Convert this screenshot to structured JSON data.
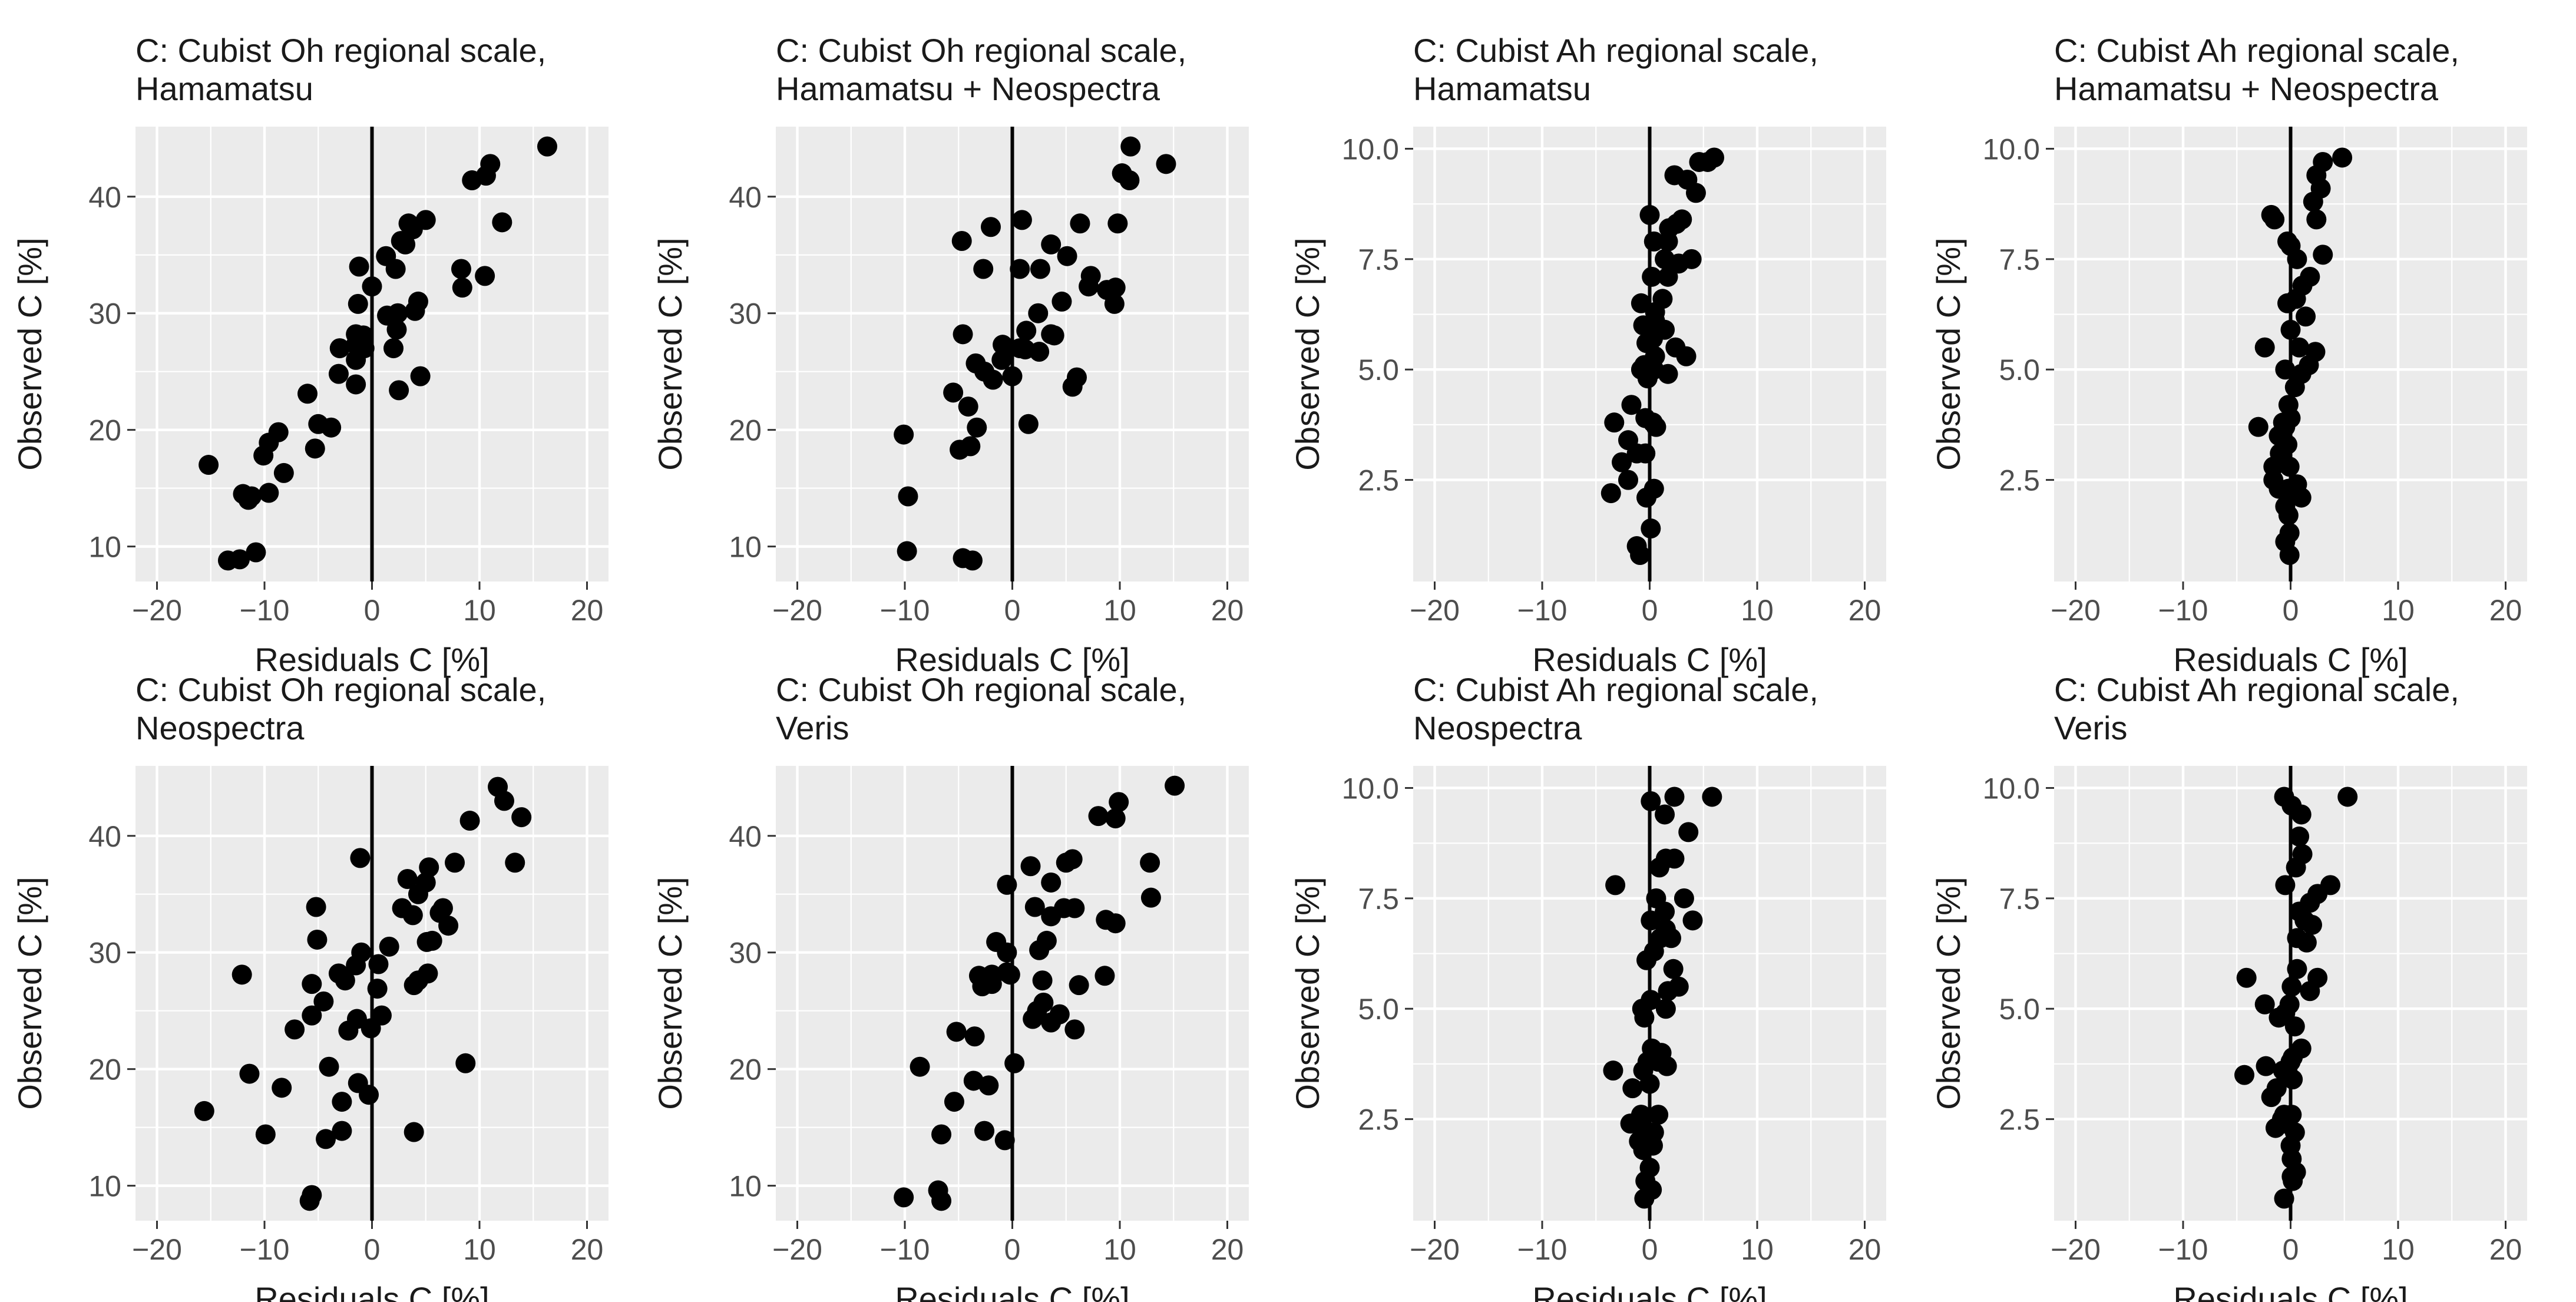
{
  "colors": {
    "panel_bg": "#ebebeb",
    "grid": "#ffffff",
    "point": "#000000",
    "zero_line": "#000000",
    "text": "#1a1a1a",
    "tick_text": "#4d4d4d"
  },
  "chart_data": [
    {
      "type": "scatter",
      "title_lines": [
        "C: Cubist Oh regional scale,",
        "Hamamatsu"
      ],
      "xlabel": "Residuals C [%]",
      "ylabel": "Observed C [%]",
      "xlim": [
        -22,
        22
      ],
      "ylim": [
        7,
        46
      ],
      "xticks": [
        -20,
        -10,
        0,
        10,
        20
      ],
      "xtick_labels": [
        "−20",
        "−10",
        "0",
        "10",
        "20"
      ],
      "yticks": [
        10,
        20,
        30,
        40
      ],
      "ytick_labels": [
        "10",
        "20",
        "30",
        "40"
      ],
      "x": [
        16.3,
        11.0,
        10.6,
        9.3,
        12.1,
        5.0,
        3.8,
        3.4,
        2.7,
        3.1,
        2.2,
        1.3,
        -1.2,
        0.0,
        -1.3,
        8.3,
        8.4,
        4.3,
        4.0,
        2.4,
        1.4,
        -1.5,
        -0.8,
        -1.5,
        -3.0,
        -0.7,
        -1.5,
        2.3,
        2.0,
        10.5,
        4.5,
        2.5,
        -1.5,
        -3.1,
        -5.0,
        -3.8,
        -6.0,
        -5.3,
        -9.6,
        -8.7,
        -10.1,
        -11.2,
        -8.2,
        -9.6,
        -15.2,
        -11.5,
        -12.0,
        -10.8,
        -13.4,
        -12.3
      ],
      "y": [
        44.3,
        42.8,
        41.8,
        41.4,
        37.8,
        38.0,
        37.2,
        37.7,
        36.2,
        35.9,
        33.8,
        34.9,
        34.0,
        32.3,
        30.8,
        33.8,
        32.2,
        31.0,
        30.2,
        30.0,
        29.8,
        28.2,
        28.1,
        27.3,
        27.0,
        27.0,
        26.0,
        28.6,
        27.0,
        33.2,
        24.6,
        23.4,
        23.9,
        24.8,
        20.5,
        20.2,
        23.1,
        18.4,
        18.9,
        19.8,
        17.8,
        14.3,
        16.3,
        14.6,
        17.0,
        14.0,
        14.5,
        9.5,
        8.8,
        8.9
      ]
    },
    {
      "type": "scatter",
      "title_lines": [
        "C: Cubist Oh regional scale,",
        "Hamamatsu + Neospectra"
      ],
      "xlabel": "Residuals C [%]",
      "ylabel": "Observed C [%]",
      "xlim": [
        -22,
        22
      ],
      "ylim": [
        7,
        46
      ],
      "xticks": [
        -20,
        -10,
        0,
        10,
        20
      ],
      "xtick_labels": [
        "−20",
        "−10",
        "0",
        "10",
        "20"
      ],
      "yticks": [
        10,
        20,
        30,
        40
      ],
      "ytick_labels": [
        "10",
        "20",
        "30",
        "40"
      ],
      "x": [
        11.0,
        10.2,
        14.3,
        10.9,
        9.8,
        6.3,
        9.6,
        0.9,
        -2.0,
        -4.7,
        -2.7,
        0.7,
        2.6,
        3.6,
        5.1,
        7.3,
        7.1,
        8.8,
        9.5,
        4.6,
        2.4,
        1.3,
        -0.9,
        -0.5,
        -1.0,
        3.9,
        3.6,
        0.7,
        1.2,
        2.5,
        -4.6,
        -2.6,
        -1.8,
        -3.4,
        -5.5,
        -4.1,
        -3.3,
        -3.9,
        -4.9,
        0.0,
        6.0,
        5.6,
        1.5,
        -10.1,
        -9.7,
        -9.8,
        -4.6,
        -3.7
      ],
      "y": [
        44.3,
        42.0,
        42.8,
        41.4,
        37.7,
        37.7,
        32.2,
        38.0,
        37.4,
        36.2,
        33.8,
        33.8,
        33.8,
        35.9,
        34.9,
        33.2,
        32.3,
        32.0,
        30.8,
        31.0,
        30.0,
        28.5,
        27.3,
        27.0,
        26.0,
        28.1,
        28.2,
        27.0,
        26.9,
        26.7,
        28.2,
        25.0,
        24.3,
        25.7,
        23.2,
        22.0,
        20.2,
        18.6,
        18.3,
        24.6,
        24.5,
        23.7,
        20.5,
        19.6,
        14.3,
        9.6,
        9.0,
        8.8
      ]
    },
    {
      "type": "scatter",
      "title_lines": [
        "C: Cubist Ah regional scale,",
        "Hamamatsu"
      ],
      "xlabel": "Residuals C [%]",
      "ylabel": "Observed C [%]",
      "xlim": [
        -22,
        22
      ],
      "ylim": [
        0.2,
        10.5
      ],
      "xticks": [
        -20,
        -10,
        0,
        10,
        20
      ],
      "xtick_labels": [
        "−20",
        "−10",
        "0",
        "10",
        "20"
      ],
      "yticks": [
        2.5,
        5.0,
        7.5,
        10.0
      ],
      "ytick_labels": [
        "2.5",
        "5.0",
        "7.5",
        "10.0"
      ],
      "x": [
        6.0,
        5.4,
        4.6,
        2.3,
        3.5,
        4.3,
        2.5,
        3.0,
        1.8,
        0.0,
        1.7,
        0.4,
        1.4,
        2.7,
        3.9,
        1.7,
        0.2,
        1.2,
        0.5,
        -0.8,
        0.5,
        -0.6,
        -0.3,
        0.3,
        1.4,
        2.4,
        0.5,
        3.4,
        1.7,
        -0.5,
        0.4,
        -0.8,
        -0.2,
        -3.3,
        -1.7,
        -0.4,
        0.3,
        0.6,
        -2.0,
        -1.2,
        -0.4,
        -2.6,
        -2.0,
        -3.6,
        -0.3,
        0.4,
        0.1,
        -1.2,
        -0.9
      ],
      "y": [
        9.8,
        9.7,
        9.7,
        9.4,
        9.3,
        9.0,
        8.3,
        8.4,
        8.2,
        8.5,
        7.9,
        7.9,
        7.5,
        7.4,
        7.5,
        7.1,
        7.1,
        6.6,
        6.3,
        6.5,
        6.1,
        6.0,
        5.6,
        5.7,
        5.9,
        5.5,
        5.3,
        5.3,
        4.9,
        5.1,
        5.0,
        5.0,
        4.8,
        3.8,
        4.2,
        3.9,
        3.8,
        3.7,
        3.4,
        3.1,
        3.1,
        2.9,
        2.5,
        2.2,
        2.1,
        2.3,
        1.4,
        1.0,
        0.8
      ]
    },
    {
      "type": "scatter",
      "title_lines": [
        "C: Cubist Ah regional scale,",
        "Hamamatsu + Neospectra"
      ],
      "xlabel": "Residuals C [%]",
      "ylabel": "Observed C [%]",
      "xlim": [
        -22,
        22
      ],
      "ylim": [
        0.2,
        10.5
      ],
      "xticks": [
        -20,
        -10,
        0,
        10,
        20
      ],
      "xtick_labels": [
        "−20",
        "−10",
        "0",
        "10",
        "20"
      ],
      "yticks": [
        2.5,
        5.0,
        7.5,
        10.0
      ],
      "ytick_labels": [
        "2.5",
        "5.0",
        "7.5",
        "10.0"
      ],
      "x": [
        4.8,
        3.0,
        2.4,
        2.8,
        2.1,
        -1.8,
        -1.5,
        2.4,
        0.0,
        -0.3,
        3.0,
        0.6,
        1.8,
        1.1,
        -0.3,
        0.5,
        1.4,
        0.0,
        0.8,
        2.3,
        1.7,
        -2.4,
        -0.5,
        1.0,
        0.4,
        -0.2,
        0.0,
        -0.7,
        -1.1,
        -0.3,
        -0.5,
        -3.0,
        -0.1,
        -1.0,
        -1.6,
        -0.2,
        0.6,
        -1.1,
        -1.6,
        -0.5,
        -0.1,
        -0.2,
        1.0,
        -0.5,
        -0.1
      ],
      "y": [
        9.8,
        9.7,
        9.4,
        9.1,
        8.8,
        8.5,
        8.4,
        8.4,
        7.8,
        7.9,
        7.6,
        7.5,
        7.1,
        6.9,
        6.5,
        6.6,
        6.2,
        5.9,
        5.5,
        5.4,
        5.1,
        5.5,
        5.0,
        4.9,
        4.6,
        4.2,
        3.9,
        3.8,
        3.5,
        3.3,
        3.7,
        3.7,
        2.8,
        3.1,
        2.8,
        2.3,
        2.4,
        2.3,
        2.5,
        1.9,
        1.3,
        1.7,
        2.1,
        1.1,
        0.8
      ]
    },
    {
      "type": "scatter",
      "title_lines": [
        "C: Cubist Oh regional scale,",
        "Neospectra"
      ],
      "xlabel": "Residuals C [%]",
      "ylabel": "Observed C [%]",
      "xlim": [
        -22,
        22
      ],
      "ylim": [
        7,
        46
      ],
      "xticks": [
        -20,
        -10,
        0,
        10,
        20
      ],
      "xtick_labels": [
        "−20",
        "−10",
        "0",
        "10",
        "20"
      ],
      "yticks": [
        10,
        20,
        30,
        40
      ],
      "ytick_labels": [
        "10",
        "20",
        "30",
        "40"
      ],
      "x": [
        11.7,
        12.3,
        13.9,
        13.3,
        9.1,
        7.7,
        5.3,
        5.0,
        3.3,
        4.3,
        6.6,
        3.8,
        6.3,
        2.8,
        7.1,
        5.1,
        5.6,
        1.6,
        -1.0,
        -5.2,
        -1.5,
        -5.1,
        -1.1,
        0.6,
        -3.1,
        -2.5,
        -5.6,
        5.2,
        4.3,
        3.9,
        0.5,
        0.9,
        -1.4,
        -2.2,
        -0.1,
        -4.5,
        -5.6,
        -7.2,
        -4.0,
        -2.8,
        -1.3,
        -0.3,
        -12.1,
        -11.4,
        -8.4,
        -15.6,
        -9.9,
        -2.8,
        8.7,
        3.9,
        -4.3,
        -5.6,
        -5.8
      ],
      "y": [
        44.2,
        43.0,
        41.6,
        37.7,
        41.3,
        37.7,
        37.3,
        36.0,
        36.3,
        35.0,
        33.8,
        33.2,
        33.4,
        33.8,
        32.3,
        30.9,
        31.0,
        30.5,
        30.0,
        33.9,
        28.9,
        31.1,
        38.1,
        29.0,
        28.2,
        27.6,
        27.3,
        28.2,
        27.6,
        27.2,
        26.9,
        24.6,
        24.3,
        23.3,
        23.5,
        25.8,
        24.6,
        23.4,
        20.2,
        17.2,
        18.8,
        17.8,
        28.1,
        19.6,
        18.4,
        16.4,
        14.4,
        14.7,
        20.5,
        14.6,
        14.0,
        9.2,
        8.7
      ]
    },
    {
      "type": "scatter",
      "title_lines": [
        "C: Cubist Oh regional scale,",
        "Veris"
      ],
      "xlabel": "Residuals C [%]",
      "ylabel": "Observed C [%]",
      "xlim": [
        -22,
        22
      ],
      "ylim": [
        7,
        46
      ],
      "xticks": [
        -20,
        -10,
        0,
        10,
        20
      ],
      "xtick_labels": [
        "−20",
        "−10",
        "0",
        "10",
        "20"
      ],
      "yticks": [
        10,
        20,
        30,
        40
      ],
      "ytick_labels": [
        "10",
        "20",
        "30",
        "40"
      ],
      "x": [
        15.1,
        9.9,
        9.6,
        8.0,
        12.8,
        5.6,
        5.0,
        1.7,
        3.6,
        12.9,
        -0.5,
        4.8,
        2.1,
        5.8,
        8.7,
        3.6,
        9.6,
        3.2,
        2.5,
        -1.5,
        -0.5,
        -0.5,
        -1.9,
        -3.1,
        -2.8,
        -1.9,
        -0.2,
        2.8,
        8.6,
        6.2,
        2.9,
        1.9,
        4.4,
        2.3,
        3.6,
        5.8,
        0.2,
        -5.2,
        -3.5,
        -8.6,
        -3.6,
        -2.2,
        -5.4,
        -6.6,
        -0.7,
        -2.6,
        -6.9,
        -10.1,
        -6.6
      ],
      "y": [
        44.3,
        42.9,
        41.5,
        41.7,
        37.7,
        38.0,
        37.7,
        37.4,
        36.0,
        34.7,
        35.8,
        33.8,
        33.9,
        33.8,
        32.8,
        33.1,
        32.5,
        31.0,
        30.2,
        30.9,
        30.0,
        28.3,
        28.1,
        28.0,
        27.1,
        27.3,
        28.1,
        27.6,
        28.0,
        27.2,
        25.7,
        24.3,
        24.7,
        25.0,
        24.0,
        23.4,
        20.5,
        23.2,
        22.8,
        20.2,
        19.0,
        18.6,
        17.2,
        14.4,
        13.9,
        14.7,
        9.6,
        9.0,
        8.7
      ]
    },
    {
      "type": "scatter",
      "title_lines": [
        "C: Cubist Ah regional scale,",
        "Neospectra"
      ],
      "xlabel": "Residuals C [%]",
      "ylabel": "Observed C [%]",
      "xlim": [
        -22,
        22
      ],
      "ylim": [
        0.2,
        10.5
      ],
      "xticks": [
        -20,
        -10,
        0,
        10,
        20
      ],
      "xtick_labels": [
        "−20",
        "−10",
        "0",
        "10",
        "20"
      ],
      "yticks": [
        2.5,
        5.0,
        7.5,
        10.0
      ],
      "ytick_labels": [
        "2.5",
        "5.0",
        "7.5",
        "10.0"
      ],
      "x": [
        5.8,
        2.3,
        0.1,
        1.4,
        3.6,
        1.5,
        2.3,
        0.9,
        -3.2,
        0.6,
        1.4,
        3.2,
        0.1,
        1.5,
        4.0,
        2.0,
        1.0,
        0.4,
        -0.3,
        2.2,
        2.7,
        1.7,
        0.1,
        1.5,
        -0.7,
        -0.5,
        0.2,
        1.1,
        -0.2,
        -0.6,
        0.8,
        1.6,
        0.0,
        -1.6,
        -3.4,
        -0.8,
        0.8,
        0.4,
        -0.6,
        -1.8,
        -1.0,
        0.3,
        -0.2,
        -0.6,
        0.0,
        -0.4,
        0.2,
        -0.5
      ],
      "y": [
        9.8,
        9.8,
        9.7,
        9.4,
        9.0,
        8.4,
        8.4,
        8.2,
        7.8,
        7.5,
        7.2,
        7.5,
        7.0,
        6.8,
        7.0,
        6.6,
        6.6,
        6.3,
        6.1,
        5.9,
        5.5,
        5.4,
        5.2,
        5.0,
        5.0,
        4.8,
        4.1,
        4.0,
        3.8,
        3.6,
        3.8,
        3.7,
        3.3,
        3.2,
        3.6,
        2.6,
        2.6,
        2.2,
        2.3,
        2.4,
        2.0,
        1.9,
        2.1,
        1.8,
        1.4,
        1.1,
        0.9,
        0.7
      ]
    },
    {
      "type": "scatter",
      "title_lines": [
        "C: Cubist Ah regional scale,",
        "Veris"
      ],
      "xlabel": "Residuals C [%]",
      "ylabel": "Observed C [%]",
      "xlim": [
        -22,
        22
      ],
      "ylim": [
        0.2,
        10.5
      ],
      "xticks": [
        -20,
        -10,
        0,
        10,
        20
      ],
      "xtick_labels": [
        "−20",
        "−10",
        "0",
        "10",
        "20"
      ],
      "yticks": [
        2.5,
        5.0,
        7.5,
        10.0
      ],
      "ytick_labels": [
        "2.5",
        "5.0",
        "7.5",
        "10.0"
      ],
      "x": [
        5.3,
        -0.6,
        0.1,
        1.0,
        0.8,
        1.1,
        0.5,
        3.7,
        2.5,
        1.8,
        -0.5,
        0.8,
        1.3,
        2.0,
        0.6,
        1.5,
        2.5,
        0.6,
        0.1,
        1.8,
        -0.1,
        -0.5,
        0.4,
        -4.1,
        -2.4,
        -1.1,
        1.0,
        0.2,
        0.0,
        -0.3,
        0.2,
        -0.7,
        -1.3,
        -2.3,
        -1.8,
        -4.3,
        -0.6,
        -0.8,
        0.1,
        -0.5,
        -1.4,
        0.4,
        0.0,
        0.1,
        0.5,
        0.1,
        0.2,
        -0.6
      ],
      "y": [
        9.8,
        9.8,
        9.6,
        9.4,
        8.9,
        8.5,
        8.2,
        7.8,
        7.6,
        7.4,
        7.8,
        7.2,
        7.0,
        6.9,
        6.6,
        6.5,
        5.7,
        5.9,
        5.5,
        5.4,
        5.1,
        4.9,
        4.6,
        5.7,
        5.1,
        4.8,
        4.1,
        3.9,
        3.8,
        3.6,
        3.4,
        3.6,
        3.2,
        3.7,
        3.0,
        3.5,
        2.6,
        2.5,
        2.6,
        2.4,
        2.3,
        2.2,
        1.9,
        1.6,
        1.3,
        1.2,
        1.1,
        0.7
      ]
    }
  ]
}
